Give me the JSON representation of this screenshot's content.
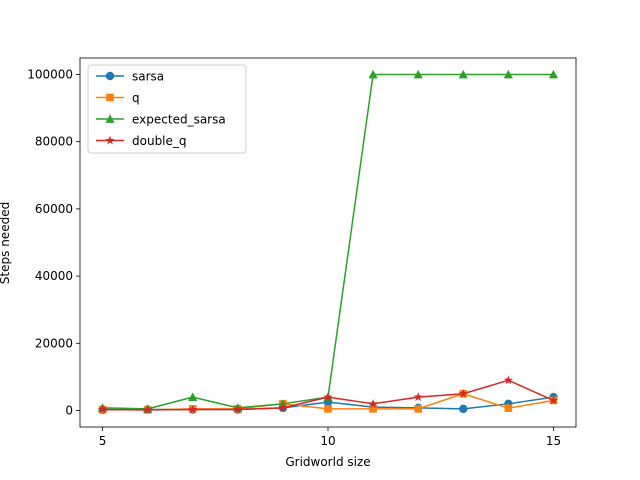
{
  "chart_data": {
    "type": "line",
    "title": "",
    "xlabel": "Gridworld size",
    "ylabel": "Steps needed",
    "x": [
      5,
      6,
      7,
      8,
      9,
      10,
      11,
      12,
      13,
      14,
      15
    ],
    "xlim": [
      4.5,
      15.5
    ],
    "ylim": [
      -4900,
      104900
    ],
    "xticks": [
      5,
      10,
      15
    ],
    "yticks": [
      0,
      20000,
      40000,
      60000,
      80000,
      100000
    ],
    "grid": false,
    "legend_position": "upper-left",
    "series": [
      {
        "name": "sarsa",
        "color": "#1f77b4",
        "marker": "circle",
        "values": [
          200,
          300,
          300,
          300,
          800,
          2500,
          1000,
          800,
          500,
          2000,
          4000
        ]
      },
      {
        "name": "q",
        "color": "#ff7f0e",
        "marker": "square",
        "values": [
          300,
          200,
          500,
          500,
          2000,
          500,
          500,
          500,
          5000,
          700,
          3000
        ]
      },
      {
        "name": "expected_sarsa",
        "color": "#2ca02c",
        "marker": "triangle",
        "values": [
          800,
          500,
          4000,
          800,
          2000,
          4000,
          100000,
          100000,
          100000,
          100000,
          100000
        ]
      },
      {
        "name": "double_q",
        "color": "#d62728",
        "marker": "star",
        "values": [
          300,
          200,
          300,
          300,
          800,
          4000,
          2000,
          4000,
          5000,
          9000,
          3000
        ]
      }
    ]
  }
}
